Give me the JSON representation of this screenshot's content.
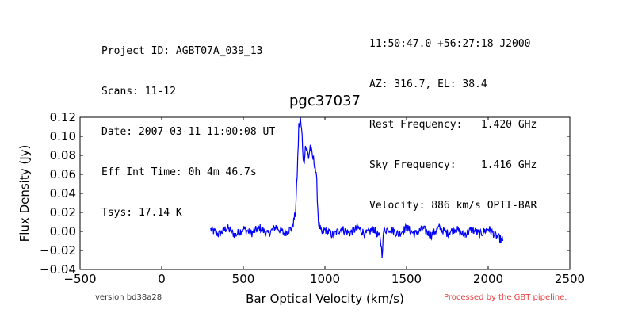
{
  "header": {
    "left_lines": [
      "Project ID: AGBT07A_039_13",
      "Scans: 11-12",
      "Date: 2007-03-11 11:00:08 UT",
      "Eff Int Time: 0h 4m 46.7s",
      "Tsys: 17.14 K"
    ],
    "right_lines": [
      "11:50:47.0 +56:27:18 J2000",
      "AZ: 316.7, EL: 38.4",
      "Rest Frequency:   1.420 GHz",
      "Sky Frequency:    1.416 GHz",
      "Velocity: 886 km/s OPTI-BAR"
    ]
  },
  "footer": {
    "version": "version bd38a28",
    "processed": "Processed by the GBT pipeline.",
    "processed_color": "#e84040"
  },
  "colors": {
    "series": "#0000ff"
  },
  "chart_data": {
    "type": "line",
    "title": "pgc37037",
    "xlabel": "Bar Optical Velocity (km/s)",
    "ylabel": "Flux Density (Jy)",
    "xlim": [
      -500,
      2500
    ],
    "ylim": [
      -0.04,
      0.12
    ],
    "xticks": [
      -500,
      0,
      500,
      1000,
      1500,
      2000,
      2500
    ],
    "yticks": [
      -0.04,
      -0.02,
      0.0,
      0.02,
      0.04,
      0.06,
      0.08,
      0.1,
      0.12
    ],
    "xtick_labels": [
      "−500",
      "0",
      "500",
      "1000",
      "1500",
      "2000",
      "2500"
    ],
    "ytick_labels": [
      "−0.04",
      "−0.02",
      "0.00",
      "0.02",
      "0.04",
      "0.06",
      "0.08",
      "0.10",
      "0.12"
    ],
    "grid": false,
    "series": [
      {
        "x": [
          300,
          350,
          400,
          450,
          500,
          550,
          600,
          650,
          700,
          750,
          800,
          820,
          830,
          840,
          850,
          860,
          870,
          880,
          890,
          900,
          910,
          920,
          930,
          940,
          950,
          960,
          980,
          1000,
          1050,
          1100,
          1150,
          1200,
          1250,
          1300,
          1340,
          1350,
          1360,
          1400,
          1450,
          1500,
          1550,
          1600,
          1650,
          1700,
          1750,
          1800,
          1850,
          1900,
          1950,
          2000,
          2050,
          2090
        ],
        "y": [
          0.002,
          -0.003,
          0.004,
          -0.004,
          0.003,
          -0.002,
          0.004,
          -0.003,
          0.005,
          -0.002,
          0.004,
          0.02,
          0.06,
          0.11,
          0.117,
          0.1,
          0.07,
          0.09,
          0.085,
          0.078,
          0.09,
          0.08,
          0.075,
          0.07,
          0.05,
          0.01,
          -0.003,
          0.002,
          -0.004,
          0.003,
          -0.002,
          0.004,
          -0.003,
          0.003,
          -0.008,
          -0.024,
          0.001,
          0.003,
          -0.003,
          0.004,
          -0.003,
          0.003,
          -0.004,
          0.004,
          -0.002,
          0.003,
          -0.004,
          0.002,
          -0.003,
          0.003,
          -0.005,
          -0.01
        ]
      }
    ]
  }
}
